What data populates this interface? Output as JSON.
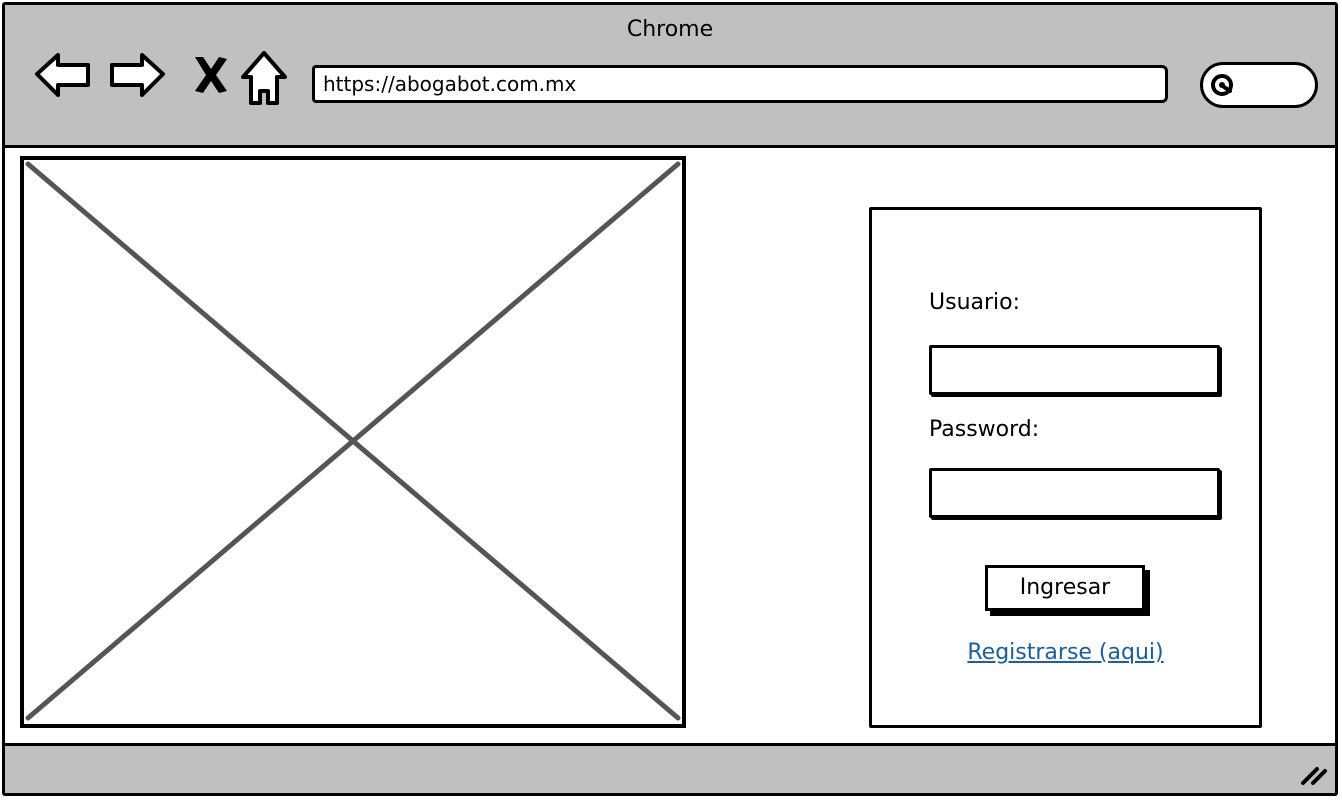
{
  "browser": {
    "window_title": "Chrome",
    "url": "https://abogabot.com.mx",
    "icons": {
      "back": "arrow-left-icon",
      "forward": "arrow-right-icon",
      "stop": "close-icon",
      "home": "home-icon",
      "search": "search-icon",
      "resize": "resize-grip-icon"
    }
  },
  "login": {
    "username_label": "Usuario:",
    "username_value": "",
    "password_label": "Password:",
    "password_value": "",
    "submit_label": "Ingresar",
    "register_link": "Registrarse (aqui)"
  },
  "colors": {
    "chrome_gray": "#c0c0c0",
    "link_blue": "#1a5fa0",
    "placeholder_stroke": "#555555"
  }
}
